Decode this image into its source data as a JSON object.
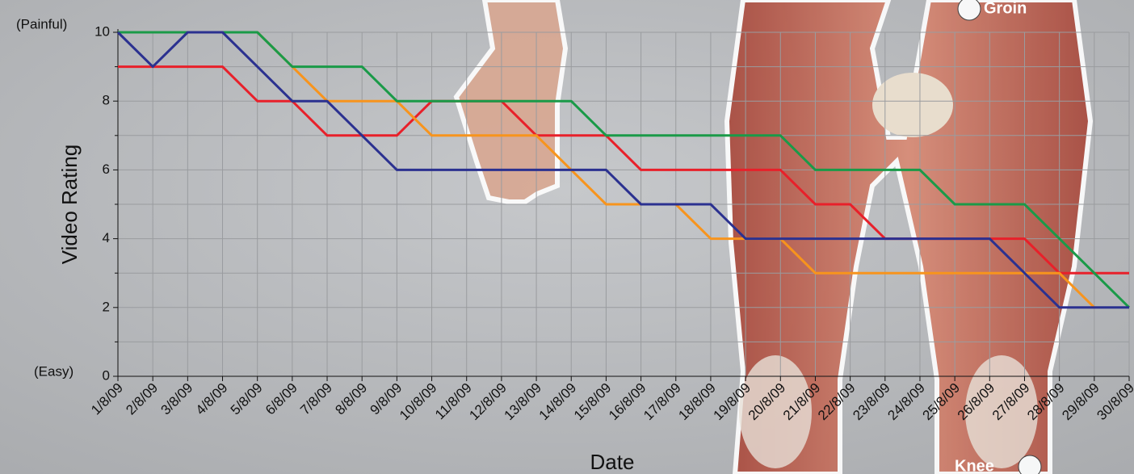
{
  "chart_data": {
    "type": "line",
    "x_title": "Date",
    "y_title": "Video Rating",
    "annotations": [
      "(Painful)",
      "(Easy)",
      "Groin",
      "Knee"
    ],
    "categories": [
      "1/8/09",
      "2/8/09",
      "3/8/09",
      "4/8/09",
      "5/8/09",
      "6/8/09",
      "7/8/09",
      "8/8/09",
      "9/8/09",
      "10/8/09",
      "11/8/09",
      "12/8/09",
      "13/8/09",
      "14/8/09",
      "15/8/09",
      "16/8/09",
      "17/8/09",
      "18/8/09",
      "19/8/09",
      "20/8/09",
      "21/8/09",
      "22/8/09",
      "23/8/09",
      "24/8/09",
      "25/8/09",
      "26/8/09",
      "27/8/09",
      "28/8/09",
      "29/8/09",
      "30/8/09"
    ],
    "series": [
      {
        "color": "#e8202a",
        "values": [
          9,
          9,
          9,
          9,
          8,
          8,
          7,
          7,
          7,
          8,
          8,
          8,
          7,
          7,
          7,
          6,
          6,
          6,
          6,
          6,
          5,
          5,
          4,
          4,
          4,
          4,
          4,
          3,
          3,
          3
        ]
      },
      {
        "color": "#f7941d",
        "values": [
          10,
          10,
          10,
          10,
          10,
          9,
          8,
          8,
          8,
          7,
          7,
          7,
          7,
          6,
          5,
          5,
          5,
          4,
          4,
          4,
          3,
          3,
          3,
          3,
          3,
          3,
          3,
          3,
          2,
          null
        ]
      },
      {
        "color": "#1a9a48",
        "values": [
          10,
          10,
          10,
          10,
          10,
          9,
          9,
          9,
          8,
          8,
          8,
          8,
          8,
          8,
          7,
          7,
          7,
          7,
          7,
          7,
          6,
          6,
          6,
          6,
          5,
          5,
          5,
          4,
          3,
          2
        ]
      },
      {
        "color": "#2b3190",
        "values": [
          10,
          9,
          10,
          10,
          9,
          8,
          8,
          7,
          6,
          6,
          6,
          6,
          6,
          6,
          6,
          5,
          5,
          5,
          4,
          4,
          4,
          4,
          4,
          4,
          4,
          4,
          3,
          2,
          2,
          2
        ]
      }
    ],
    "ylim": [
      0,
      10
    ],
    "yticks": [
      0,
      2,
      4,
      6,
      8,
      10
    ],
    "minor_yticks": [
      1,
      3,
      5,
      7,
      9
    ],
    "grid": true
  }
}
